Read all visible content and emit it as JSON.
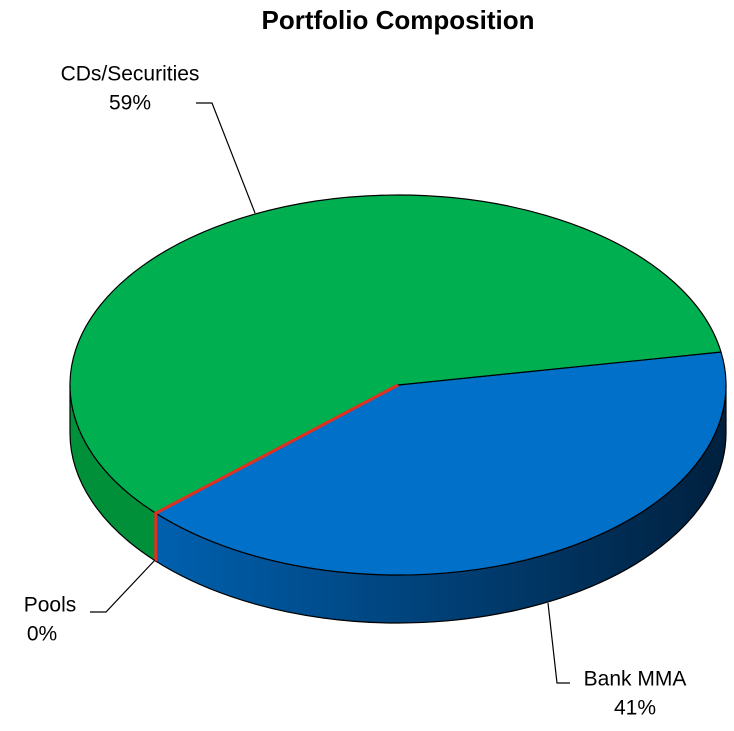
{
  "chart_data": {
    "type": "pie",
    "title": "Portfolio Composition",
    "categories": [
      "Bank MMA",
      "Pools",
      "CDs/Securities"
    ],
    "values": [
      41,
      0,
      59
    ],
    "value_labels": [
      "41%",
      "0%",
      "59%"
    ],
    "colors": [
      "#0070c8",
      "#e03020",
      "#00b050"
    ],
    "side_colors": [
      "#00407a",
      "#a01810",
      "#00903a"
    ]
  }
}
